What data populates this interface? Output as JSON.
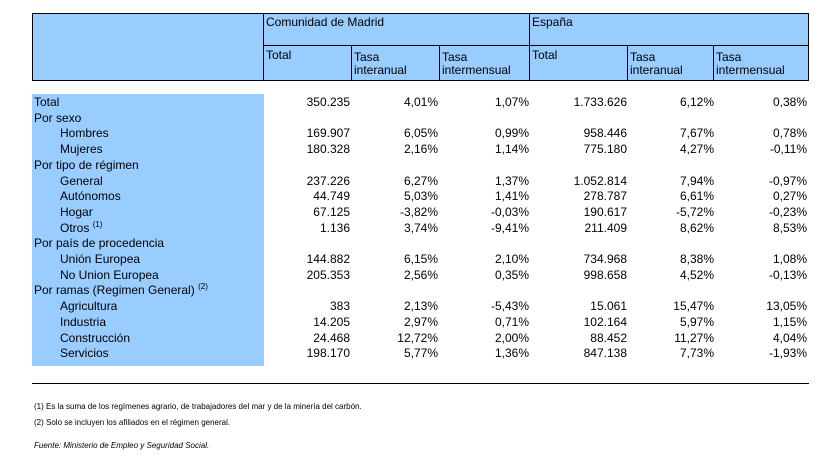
{
  "header": {
    "group_madrid": "Comunidad de Madrid",
    "group_espana": "España",
    "madrid_cols": [
      "Total",
      "Tasa\ninteranual",
      "Tasa\nintermensual"
    ],
    "espana_cols": [
      "Total",
      "Tasa\ninteranual",
      "Tasa\nintermensual"
    ]
  },
  "rows": [
    {
      "label": "Total",
      "values": [
        "350.235",
        "4,01%",
        "1,07%",
        "1.733.626",
        "6,12%",
        "0,38%"
      ]
    },
    {
      "label": "Por sexo",
      "values": [
        "",
        "",
        "",
        "",
        "",
        ""
      ]
    },
    {
      "label": "Hombres",
      "indent": true,
      "values": [
        "169.907",
        "6,05%",
        "0,99%",
        "958.446",
        "7,67%",
        "0,78%"
      ]
    },
    {
      "label": "Mujeres",
      "indent": true,
      "values": [
        "180.328",
        "2,16%",
        "1,14%",
        "775.180",
        "4,27%",
        "-0,11%"
      ]
    },
    {
      "label": "Por tipo de régimen",
      "values": [
        "",
        "",
        "",
        "",
        "",
        ""
      ]
    },
    {
      "label": "General",
      "indent": true,
      "values": [
        "237.226",
        "6,27%",
        "1,37%",
        "1.052.814",
        "7,94%",
        "-0,97%"
      ]
    },
    {
      "label": "Autónomos",
      "indent": true,
      "values": [
        "44.749",
        "5,03%",
        "1,41%",
        "278.787",
        "6,61%",
        "0,27%"
      ]
    },
    {
      "label": "Hogar",
      "indent": true,
      "values": [
        "67.125",
        "-3,82%",
        "-0,03%",
        "190.617",
        "-5,72%",
        "-0,23%"
      ]
    },
    {
      "label": "Otros",
      "sup": "(1)",
      "indent": true,
      "values": [
        "1.136",
        "3,74%",
        "-9,41%",
        "211.409",
        "8,62%",
        "8,53%"
      ]
    },
    {
      "label": "Por país de procedencia",
      "values": [
        "",
        "",
        "",
        "",
        "",
        ""
      ]
    },
    {
      "label": "Unión Europea",
      "indent": true,
      "values": [
        "144.882",
        "6,15%",
        "2,10%",
        "734.968",
        "8,38%",
        "1,08%"
      ]
    },
    {
      "label": "No Union Europea",
      "indent": true,
      "values": [
        "205.353",
        "2,56%",
        "0,35%",
        "998.658",
        "4,52%",
        "-0,13%"
      ]
    },
    {
      "label": "Por ramas (Regimen General)",
      "sup": "(2)",
      "values": [
        "",
        "",
        "",
        "",
        "",
        ""
      ]
    },
    {
      "label": "Agricultura",
      "indent": true,
      "values": [
        "383",
        "2,13%",
        "-5,43%",
        "15.061",
        "15,47%",
        "13,05%"
      ]
    },
    {
      "label": "Industria",
      "indent": true,
      "values": [
        "14.205",
        "2,97%",
        "0,71%",
        "102.164",
        "5,97%",
        "1,15%"
      ]
    },
    {
      "label": "Construcción",
      "indent": true,
      "values": [
        "24.468",
        "12,72%",
        "2,00%",
        "88.452",
        "11,27%",
        "4,04%"
      ]
    },
    {
      "label": "Servicios",
      "indent": true,
      "values": [
        "198.170",
        "5,77%",
        "1,36%",
        "847.138",
        "7,73%",
        "-1,93%"
      ]
    }
  ],
  "notes": [
    "(1) Es la suma de los regímenes  agrario, de trabajadores del mar y de la minería del carbón.",
    "(2) Solo se incluyen los afiliados en el régimen general."
  ],
  "source": "Fuente: Ministerio de Empleo y Seguridad Social.",
  "colors": {
    "header_fill": "#99ccff"
  }
}
